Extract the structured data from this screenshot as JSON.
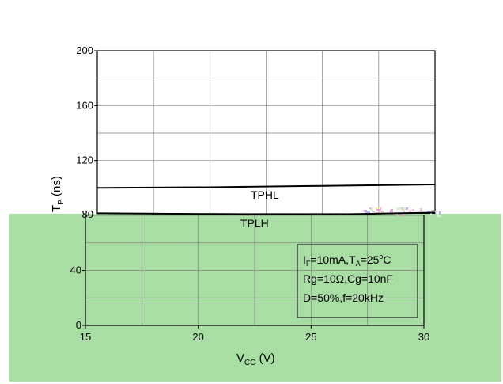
{
  "chart_data": {
    "type": "line",
    "xlabel": "V",
    "xlabel_sub": "CC",
    "xlabel_unit": " (V)",
    "ylabel": "T",
    "ylabel_sub": "P",
    "ylabel_unit": " (ns)",
    "xlim": [
      15,
      30
    ],
    "ylim": [
      0,
      200
    ],
    "xticks": [
      "15",
      "20",
      "25",
      "30"
    ],
    "yticks": [
      "0",
      "40",
      "80",
      "120",
      "160",
      "200"
    ],
    "grid": true,
    "series": [
      {
        "name": "TPHL",
        "x": [
          15,
          20,
          25,
          30
        ],
        "y": [
          100,
          100.5,
          101.5,
          102.5
        ]
      },
      {
        "name": "TPLH",
        "x": [
          15,
          20,
          25,
          30
        ],
        "y": [
          81.5,
          81,
          80.5,
          82
        ]
      }
    ],
    "conditions": {
      "line1": [
        "I",
        "F",
        "=10mA,T",
        "A",
        "=25",
        "o",
        "C"
      ],
      "line2": "Rg=10Ω,Cg=10nF",
      "line3": "D=50%,f=20kHz"
    },
    "colors": {
      "overlay": "#a8dda3",
      "line": "#000000",
      "grid": "#808080"
    }
  }
}
